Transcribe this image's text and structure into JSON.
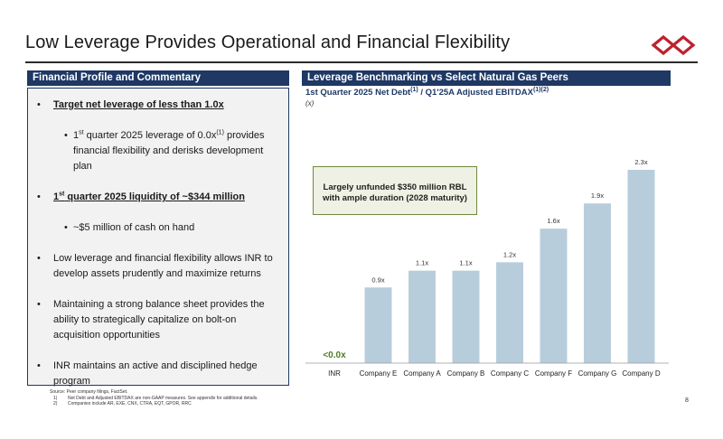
{
  "header": {
    "title": "Low Leverage Provides Operational and Financial Flexibility",
    "logo_color": "#c0202e"
  },
  "left_panel": {
    "heading": "Financial Profile and Commentary",
    "bullet_glyph": "•",
    "b1": "Target net leverage of less than 1.0x",
    "b1_sub_pre": "1",
    "b1_sub_st": "st",
    "b1_sub_mid": " quarter 2025 leverage of 0.0x",
    "b1_sub_note": "(1)",
    "b1_sub_post": " provides financial flexibility and derisks development plan",
    "b2_pre": "1",
    "b2_st": "st",
    "b2_post": " quarter 2025 liquidity of ~$344 million",
    "b2_sub": "~$5 million of cash on hand",
    "b3": "Low leverage and financial flexibility allows INR to develop assets prudently and maximize returns",
    "b4": "Maintaining a strong balance sheet provides the ability to strategically capitalize on bolt-on acquisition opportunities",
    "b5": "INR maintains an active and disciplined hedge program"
  },
  "right_panel": {
    "heading": "Leverage Benchmarking vs Select Natural Gas Peers",
    "subtitle_main": "1st Quarter 2025 Net Debt",
    "subtitle_note1": "(1)",
    "subtitle_mid": " / Q1'25A Adjusted EBITDAX",
    "subtitle_note2": "(1)(2)",
    "unit": "(x)",
    "callout": "Largely unfunded $350 million RBL with ample duration (2028 maturity)"
  },
  "chart_data": {
    "type": "bar",
    "categories": [
      "INR",
      "Company E",
      "Company A",
      "Company B",
      "Company C",
      "Company F",
      "Company G",
      "Company D"
    ],
    "values": [
      0.0,
      0.9,
      1.1,
      1.1,
      1.2,
      1.6,
      1.9,
      2.3
    ],
    "labels": [
      "<0.0x",
      "0.9x",
      "1.1x",
      "1.1x",
      "1.2x",
      "1.6x",
      "1.9x",
      "2.3x"
    ],
    "ylim": [
      0,
      2.3
    ],
    "bar_color": "#b8cddc",
    "highlight_label_color": "#4e7a27"
  },
  "footer": {
    "source": "Source: Peer company filings, FactSet.",
    "fn1_num": "1)",
    "fn1": "Net Debt and Adjusted EBITDAX are non-GAAP measures. See appendix for additional details.",
    "fn2_num": "2)",
    "fn2": "Companies include AR, EXE, CNX, CTRA, EQT, GPOR, RRC",
    "page_number": "8"
  }
}
